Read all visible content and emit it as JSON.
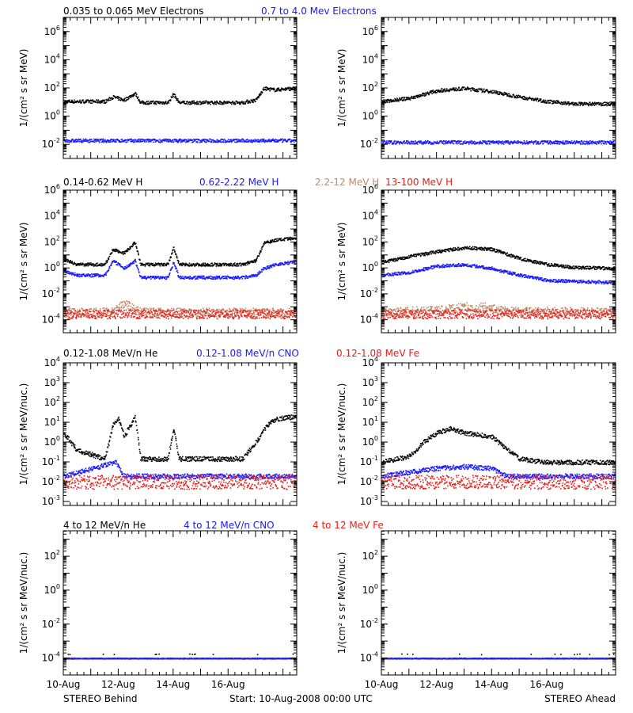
{
  "colors": {
    "black": "#000000",
    "blue": "#1a1aff",
    "tan": "#c08a6a",
    "red": "#e8201a"
  },
  "footer": {
    "left": "STEREO Behind",
    "center": "Start: 10-Aug-2008 00:00 UTC",
    "right": "STEREO Ahead"
  },
  "rows": [
    {
      "ylabel": "1/(cm² s sr MeV)",
      "ylog": [
        -3,
        7
      ],
      "yticks": [
        -2,
        0,
        2,
        4,
        6
      ],
      "legend": [
        {
          "text": "0.035 to 0.065 MeV Electrons",
          "color": "black"
        },
        {
          "text": "0.7 to 4.0 Mev Electrons",
          "color": "blue"
        }
      ]
    },
    {
      "ylabel": "1/(cm² s sr MeV)",
      "ylog": [
        -5,
        6
      ],
      "yticks": [
        -4,
        -2,
        0,
        2,
        4,
        6
      ],
      "legend": [
        {
          "text": "0.14-0.62 MeV H",
          "color": "black"
        },
        {
          "text": "0.62-2.22 MeV H",
          "color": "blue"
        },
        {
          "text": "2.2-12 MeV H",
          "color": "tan"
        },
        {
          "text": "13-100 MeV H",
          "color": "red"
        }
      ]
    },
    {
      "ylabel": "1/(cm² s sr MeV/nuc.)",
      "ylog": [
        -3.2,
        4
      ],
      "yticks": [
        -3,
        -2,
        -1,
        0,
        1,
        2,
        3,
        4
      ],
      "legend": [
        {
          "text": "0.12-1.08 MeV/n He",
          "color": "black"
        },
        {
          "text": "0.12-1.08 MeV/n CNO",
          "color": "blue"
        },
        {
          "text": "0.12-1.08 MeV Fe",
          "color": "red"
        }
      ]
    },
    {
      "ylabel": "1/(cm² s sr MeV/nuc.)",
      "ylog": [
        -5,
        3.5
      ],
      "yticks": [
        -4,
        -2,
        0,
        2
      ],
      "legend": [
        {
          "text": "4 to 12 MeV/n He",
          "color": "black"
        },
        {
          "text": "4 to 12 MeV/n CNO",
          "color": "blue"
        },
        {
          "text": "4 to 12 MeV Fe",
          "color": "red"
        }
      ]
    }
  ],
  "chart_data": {
    "type": "scatter",
    "yscale": "log",
    "x_unit": "days since 10-Aug-2008 00:00 UTC",
    "xlim": [
      0,
      8.5
    ],
    "xticks": [
      {
        "x": 0,
        "label": "10-Aug"
      },
      {
        "x": 2,
        "label": "12-Aug"
      },
      {
        "x": 4,
        "label": "14-Aug"
      },
      {
        "x": 6,
        "label": "16-Aug"
      }
    ],
    "panels": [
      {
        "row": 0,
        "spacecraft": "Behind",
        "series": [
          {
            "name": "0.035 to 0.065 MeV Electrons",
            "color": "black",
            "points": [
              [
                0,
                12
              ],
              [
                1.5,
                12
              ],
              [
                1.8,
                25
              ],
              [
                2.2,
                15
              ],
              [
                2.6,
                45
              ],
              [
                2.8,
                10
              ],
              [
                3.8,
                10
              ],
              [
                4.0,
                40
              ],
              [
                4.2,
                10
              ],
              [
                6.5,
                10
              ],
              [
                7.0,
                15
              ],
              [
                7.3,
                100
              ],
              [
                7.7,
                80
              ],
              [
                8.3,
                100
              ]
            ]
          },
          {
            "name": "0.7 to 4.0 Mev Electrons",
            "color": "blue",
            "points": [
              [
                0,
                0.02
              ],
              [
                8.5,
                0.02
              ]
            ]
          }
        ]
      },
      {
        "row": 0,
        "spacecraft": "Ahead",
        "series": [
          {
            "name": "0.035 to 0.065 MeV Electrons",
            "color": "black",
            "points": [
              [
                0,
                12
              ],
              [
                1.0,
                20
              ],
              [
                2.0,
                70
              ],
              [
                3.0,
                100
              ],
              [
                4.0,
                60
              ],
              [
                5.0,
                25
              ],
              [
                6.0,
                12
              ],
              [
                7.0,
                8
              ],
              [
                8.5,
                8
              ]
            ]
          },
          {
            "name": "0.7 to 4.0 Mev Electrons",
            "color": "blue",
            "points": [
              [
                0,
                0.015
              ],
              [
                8.5,
                0.015
              ]
            ]
          }
        ]
      },
      {
        "row": 1,
        "spacecraft": "Behind",
        "series": [
          {
            "name": "0.14-0.62 MeV H",
            "color": "black",
            "points": [
              [
                0,
                5
              ],
              [
                0.5,
                2
              ],
              [
                1.5,
                2
              ],
              [
                1.8,
                30
              ],
              [
                2.2,
                15
              ],
              [
                2.6,
                100
              ],
              [
                2.8,
                2
              ],
              [
                3.8,
                2
              ],
              [
                4.0,
                40
              ],
              [
                4.2,
                2
              ],
              [
                6.5,
                2
              ],
              [
                7.0,
                4
              ],
              [
                7.3,
                100
              ],
              [
                7.7,
                150
              ],
              [
                8.3,
                200
              ]
            ]
          },
          {
            "name": "0.62-2.22 MeV H",
            "color": "blue",
            "points": [
              [
                0,
                0.7
              ],
              [
                0.5,
                0.3
              ],
              [
                1.5,
                0.3
              ],
              [
                1.8,
                4
              ],
              [
                2.2,
                1
              ],
              [
                2.6,
                4
              ],
              [
                2.8,
                0.2
              ],
              [
                3.8,
                0.2
              ],
              [
                4.0,
                3
              ],
              [
                4.2,
                0.2
              ],
              [
                6.5,
                0.2
              ],
              [
                7.0,
                0.3
              ],
              [
                7.3,
                1
              ],
              [
                7.7,
                2
              ],
              [
                8.3,
                3
              ]
            ]
          },
          {
            "name": "2.2-12 MeV H",
            "color": "tan",
            "points": [
              [
                0,
                0.0004
              ],
              [
                1.8,
                0.0004
              ],
              [
                2.2,
                0.002
              ],
              [
                2.8,
                0.0004
              ],
              [
                8.5,
                0.0004
              ]
            ]
          },
          {
            "name": "13-100 MeV H",
            "color": "red",
            "points": [
              [
                0,
                0.0003
              ],
              [
                8.5,
                0.0003
              ]
            ]
          }
        ]
      },
      {
        "row": 1,
        "spacecraft": "Ahead",
        "series": [
          {
            "name": "0.14-0.62 MeV H",
            "color": "black",
            "points": [
              [
                0,
                3
              ],
              [
                1,
                8
              ],
              [
                2,
                20
              ],
              [
                3,
                40
              ],
              [
                4,
                30
              ],
              [
                5,
                6
              ],
              [
                6,
                2
              ],
              [
                7,
                1.2
              ],
              [
                8.5,
                1
              ]
            ]
          },
          {
            "name": "0.62-2.22 MeV H",
            "color": "blue",
            "points": [
              [
                0,
                0.3
              ],
              [
                1,
                0.5
              ],
              [
                2,
                1.5
              ],
              [
                3,
                2
              ],
              [
                4,
                1
              ],
              [
                5,
                0.3
              ],
              [
                6,
                0.12
              ],
              [
                7,
                0.1
              ],
              [
                8.5,
                0.08
              ]
            ]
          },
          {
            "name": "2.2-12 MeV H",
            "color": "tan",
            "points": [
              [
                0,
                0.0004
              ],
              [
                2,
                0.0006
              ],
              [
                3,
                0.001
              ],
              [
                3.8,
                0.001
              ],
              [
                4.5,
                0.0005
              ],
              [
                8.5,
                0.0004
              ]
            ]
          },
          {
            "name": "13-100 MeV H",
            "color": "red",
            "points": [
              [
                0,
                0.0003
              ],
              [
                8.5,
                0.0003
              ]
            ]
          }
        ]
      },
      {
        "row": 2,
        "spacecraft": "Behind",
        "series": [
          {
            "name": "0.12-1.08 MeV/n He",
            "color": "black",
            "points": [
              [
                0,
                3
              ],
              [
                0.5,
                0.4
              ],
              [
                1.5,
                0.15
              ],
              [
                1.8,
                8
              ],
              [
                2.0,
                15
              ],
              [
                2.2,
                2
              ],
              [
                2.6,
                20
              ],
              [
                2.8,
                0.15
              ],
              [
                3.8,
                0.15
              ],
              [
                4.0,
                5
              ],
              [
                4.2,
                0.15
              ],
              [
                6.5,
                0.15
              ],
              [
                7.0,
                1
              ],
              [
                7.3,
                5
              ],
              [
                7.7,
                15
              ],
              [
                8.3,
                20
              ]
            ]
          },
          {
            "name": "0.12-1.08 MeV/n CNO",
            "color": "blue",
            "points": [
              [
                0,
                0.02
              ],
              [
                1.9,
                0.1
              ],
              [
                2.2,
                0.02
              ],
              [
                8.5,
                0.02
              ]
            ]
          },
          {
            "name": "0.12-1.08 MeV Fe",
            "color": "red",
            "points": [
              [
                0,
                0.01
              ],
              [
                8.5,
                0.01
              ]
            ]
          }
        ]
      },
      {
        "row": 2,
        "spacecraft": "Ahead",
        "series": [
          {
            "name": "0.12-1.08 MeV/n He",
            "color": "black",
            "points": [
              [
                0,
                0.1
              ],
              [
                1.0,
                0.2
              ],
              [
                1.5,
                1
              ],
              [
                2.0,
                3
              ],
              [
                2.5,
                5
              ],
              [
                3.0,
                3
              ],
              [
                4.0,
                2
              ],
              [
                4.5,
                0.5
              ],
              [
                5.0,
                0.15
              ],
              [
                6.0,
                0.1
              ],
              [
                8.5,
                0.1
              ]
            ]
          },
          {
            "name": "0.12-1.08 MeV/n CNO",
            "color": "blue",
            "points": [
              [
                0,
                0.02
              ],
              [
                2,
                0.05
              ],
              [
                3,
                0.06
              ],
              [
                4,
                0.05
              ],
              [
                4.5,
                0.02
              ],
              [
                8.5,
                0.02
              ]
            ]
          },
          {
            "name": "0.12-1.08 MeV Fe",
            "color": "red",
            "points": [
              [
                0,
                0.01
              ],
              [
                8.5,
                0.01
              ]
            ]
          }
        ]
      },
      {
        "row": 3,
        "spacecraft": "Behind",
        "series": [
          {
            "name": "4 to 12 MeV/n He",
            "color": "black",
            "points": [
              [
                0,
                0.0001
              ],
              [
                8.5,
                0.0001
              ]
            ]
          },
          {
            "name": "4 to 12 MeV/n CNO",
            "color": "blue",
            "points": [
              [
                0,
                0.0001
              ],
              [
                8.5,
                0.0001
              ]
            ]
          }
        ]
      },
      {
        "row": 3,
        "spacecraft": "Ahead",
        "series": [
          {
            "name": "4 to 12 MeV/n He",
            "color": "black",
            "points": [
              [
                0,
                0.0001
              ],
              [
                8.5,
                0.0001
              ]
            ]
          },
          {
            "name": "4 to 12 MeV/n CNO",
            "color": "blue",
            "points": [
              [
                0,
                0.0001
              ],
              [
                8.5,
                0.0001
              ]
            ]
          }
        ]
      }
    ]
  }
}
